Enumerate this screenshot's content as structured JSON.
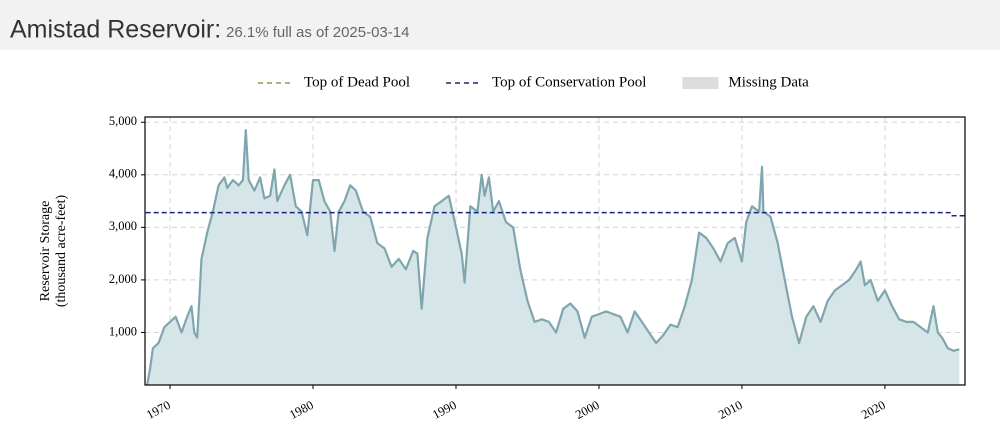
{
  "chart_data": {
    "type": "line",
    "title": "Amistad Reservoir:",
    "subtitle": "26.1% full as of 2025-03-14",
    "ylabel": [
      "Reservoir Storage",
      "(thousand acre-feet)"
    ],
    "color": "#7fa6ae",
    "area_color": "#d6e6e8",
    "grid": true,
    "xlim": [
      1968.25,
      2025.6
    ],
    "xticks": [
      1970,
      1980,
      1990,
      2000,
      2010,
      2020
    ],
    "ylim": [
      0,
      5100
    ],
    "yticks": [
      {
        "value": 1000,
        "label": "1,000"
      },
      {
        "value": 2000,
        "label": "2,000"
      },
      {
        "value": 3000,
        "label": "3,000"
      },
      {
        "value": 4000,
        "label": "4,000"
      },
      {
        "value": 5000,
        "label": "5,000"
      }
    ],
    "legend": [
      {
        "name": "Top of Dead Pool",
        "color": "#a0963c",
        "kind": "dash"
      },
      {
        "name": "Top of Conservation Pool",
        "color": "#1a237e",
        "kind": "dash"
      },
      {
        "name": "Missing Data",
        "color": "#dcdcdc",
        "kind": "box"
      }
    ],
    "reference_line": {
      "x": [
        1968.3,
        2024.6,
        2024.7,
        2025.6
      ],
      "values": [
        3280,
        3280,
        3220,
        3220
      ],
      "color": "#1a237e"
    },
    "x": [
      1968.4,
      1968.6,
      1968.8,
      1969.2,
      1969.6,
      1970.0,
      1970.4,
      1970.8,
      1971.2,
      1971.5,
      1971.7,
      1971.9,
      1972.2,
      1972.6,
      1973.0,
      1973.4,
      1973.8,
      1974.0,
      1974.4,
      1974.8,
      1975.1,
      1975.3,
      1975.5,
      1975.9,
      1976.3,
      1976.6,
      1977.0,
      1977.3,
      1977.5,
      1978.0,
      1978.4,
      1978.8,
      1979.2,
      1979.6,
      1980.0,
      1980.4,
      1980.8,
      1981.2,
      1981.5,
      1981.8,
      1982.2,
      1982.6,
      1983.0,
      1983.5,
      1984.0,
      1984.5,
      1985.0,
      1985.5,
      1986.0,
      1986.5,
      1987.0,
      1987.3,
      1987.6,
      1988.0,
      1988.5,
      1989.0,
      1989.5,
      1990.0,
      1990.4,
      1990.6,
      1991.0,
      1991.5,
      1991.8,
      1992.0,
      1992.3,
      1992.6,
      1993.0,
      1993.5,
      1994.0,
      1994.5,
      1995.0,
      1995.5,
      1996.0,
      1996.5,
      1997.0,
      1997.5,
      1998.0,
      1998.5,
      1999.0,
      1999.5,
      2000.0,
      2000.5,
      2001.0,
      2001.5,
      2002.0,
      2002.5,
      2003.0,
      2003.5,
      2004.0,
      2004.5,
      2005.0,
      2005.5,
      2006.0,
      2006.5,
      2007.0,
      2007.5,
      2008.0,
      2008.5,
      2009.0,
      2009.5,
      2010.0,
      2010.3,
      2010.7,
      2011.2,
      2011.4,
      2011.5,
      2012.0,
      2012.5,
      2013.0,
      2013.5,
      2014.0,
      2014.5,
      2015.0,
      2015.5,
      2016.0,
      2016.5,
      2017.0,
      2017.5,
      2018.0,
      2018.3,
      2018.6,
      2019.0,
      2019.5,
      2020.0,
      2020.5,
      2021.0,
      2021.5,
      2022.0,
      2022.5,
      2023.0,
      2023.4,
      2023.7,
      2024.0,
      2024.4,
      2024.8,
      2025.2
    ],
    "values": [
      0,
      300,
      700,
      800,
      1100,
      1200,
      1300,
      1000,
      1300,
      1500,
      1000,
      900,
      2400,
      2900,
      3300,
      3800,
      3950,
      3750,
      3900,
      3800,
      3900,
      4850,
      3900,
      3700,
      3950,
      3550,
      3600,
      4100,
      3500,
      3800,
      4000,
      3400,
      3300,
      2850,
      3900,
      3900,
      3500,
      3300,
      2550,
      3300,
      3500,
      3800,
      3700,
      3300,
      3200,
      2700,
      2600,
      2250,
      2400,
      2200,
      2550,
      2500,
      1450,
      2800,
      3400,
      3500,
      3600,
      3000,
      2500,
      1950,
      3400,
      3300,
      4000,
      3600,
      3950,
      3300,
      3500,
      3100,
      3000,
      2200,
      1600,
      1200,
      1250,
      1200,
      1000,
      1450,
      1550,
      1400,
      900,
      1300,
      1350,
      1400,
      1350,
      1300,
      1000,
      1400,
      1200,
      1000,
      800,
      950,
      1150,
      1100,
      1500,
      2000,
      2900,
      2800,
      2600,
      2350,
      2700,
      2800,
      2350,
      3100,
      3400,
      3300,
      4150,
      3300,
      3200,
      2700,
      2000,
      1300,
      800,
      1300,
      1500,
      1200,
      1600,
      1800,
      1900,
      2000,
      2200,
      2350,
      1900,
      2000,
      1600,
      1800,
      1500,
      1250,
      1200,
      1200,
      1100,
      1000,
      1500,
      1000,
      900,
      700,
      650,
      680
    ]
  }
}
